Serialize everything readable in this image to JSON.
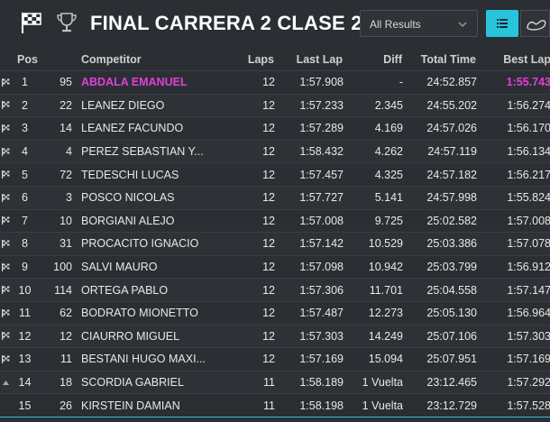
{
  "header": {
    "title": "FINAL CARRERA 2 CLASE 2",
    "results_select": "All Results",
    "icons": [
      "checkered-flag-icon",
      "trophy-icon",
      "chevron-down-icon",
      "list-icon",
      "track-icon"
    ]
  },
  "colors": {
    "accent": "#27c4dc",
    "highlight": "#e040d8",
    "background": "#2b2e33"
  },
  "columns": {
    "pos": "Pos",
    "competitor": "Competitor",
    "laps": "Laps",
    "last_lap": "Last Lap",
    "diff": "Diff",
    "total_time": "Total Time",
    "best_lap": "Best Lap"
  },
  "rows": [
    {
      "pos": "1",
      "num": "95",
      "name": "ABDALA EMANUEL",
      "laps": "12",
      "last": "1:57.908",
      "diff": "-",
      "total": "24:52.857",
      "best": "1:55.743",
      "icon": "flag"
    },
    {
      "pos": "2",
      "num": "22",
      "name": "LEANEZ DIEGO",
      "laps": "12",
      "last": "1:57.233",
      "diff": "2.345",
      "total": "24:55.202",
      "best": "1:56.274",
      "icon": "flag"
    },
    {
      "pos": "3",
      "num": "14",
      "name": "LEANEZ FACUNDO",
      "laps": "12",
      "last": "1:57.289",
      "diff": "4.169",
      "total": "24:57.026",
      "best": "1:56.170",
      "icon": "flag"
    },
    {
      "pos": "4",
      "num": "4",
      "name": "PEREZ SEBASTIAN Y...",
      "laps": "12",
      "last": "1:58.432",
      "diff": "4.262",
      "total": "24:57.119",
      "best": "1:56.134",
      "icon": "flag"
    },
    {
      "pos": "5",
      "num": "72",
      "name": "TEDESCHI LUCAS",
      "laps": "12",
      "last": "1:57.457",
      "diff": "4.325",
      "total": "24:57.182",
      "best": "1:56.217",
      "icon": "flag"
    },
    {
      "pos": "6",
      "num": "3",
      "name": "POSCO NICOLAS",
      "laps": "12",
      "last": "1:57.727",
      "diff": "5.141",
      "total": "24:57.998",
      "best": "1:55.824",
      "icon": "flag"
    },
    {
      "pos": "7",
      "num": "10",
      "name": "BORGIANI ALEJO",
      "laps": "12",
      "last": "1:57.008",
      "diff": "9.725",
      "total": "25:02.582",
      "best": "1:57.008",
      "icon": "flag"
    },
    {
      "pos": "8",
      "num": "31",
      "name": "PROCACITO IGNACIO",
      "laps": "12",
      "last": "1:57.142",
      "diff": "10.529",
      "total": "25:03.386",
      "best": "1:57.078",
      "icon": "flag"
    },
    {
      "pos": "9",
      "num": "100",
      "name": "SALVI MAURO",
      "laps": "12",
      "last": "1:57.098",
      "diff": "10.942",
      "total": "25:03.799",
      "best": "1:56.912",
      "icon": "flag"
    },
    {
      "pos": "10",
      "num": "114",
      "name": "ORTEGA PABLO",
      "laps": "12",
      "last": "1:57.306",
      "diff": "11.701",
      "total": "25:04.558",
      "best": "1:57.147",
      "icon": "flag"
    },
    {
      "pos": "11",
      "num": "62",
      "name": "BODRATO MIONETTO",
      "laps": "12",
      "last": "1:57.487",
      "diff": "12.273",
      "total": "25:05.130",
      "best": "1:56.964",
      "icon": "flag"
    },
    {
      "pos": "12",
      "num": "12",
      "name": "CIAURRO MIGUEL",
      "laps": "12",
      "last": "1:57.303",
      "diff": "14.249",
      "total": "25:07.106",
      "best": "1:57.303",
      "icon": "flag"
    },
    {
      "pos": "13",
      "num": "11",
      "name": "BESTANI HUGO MAXI...",
      "laps": "12",
      "last": "1:57.169",
      "diff": "15.094",
      "total": "25:07.951",
      "best": "1:57.169",
      "icon": "flag"
    },
    {
      "pos": "14",
      "num": "18",
      "name": "SCORDIA GABRIEL",
      "laps": "11",
      "last": "1:58.189",
      "diff": "1 Vuelta",
      "total": "23:12.465",
      "best": "1:57.292",
      "icon": "up-arrow"
    },
    {
      "pos": "15",
      "num": "26",
      "name": "KIRSTEIN DAMIAN",
      "laps": "11",
      "last": "1:58.198",
      "diff": "1 Vuelta",
      "total": "23:12.729",
      "best": "1:57.528",
      "icon": "none"
    }
  ]
}
